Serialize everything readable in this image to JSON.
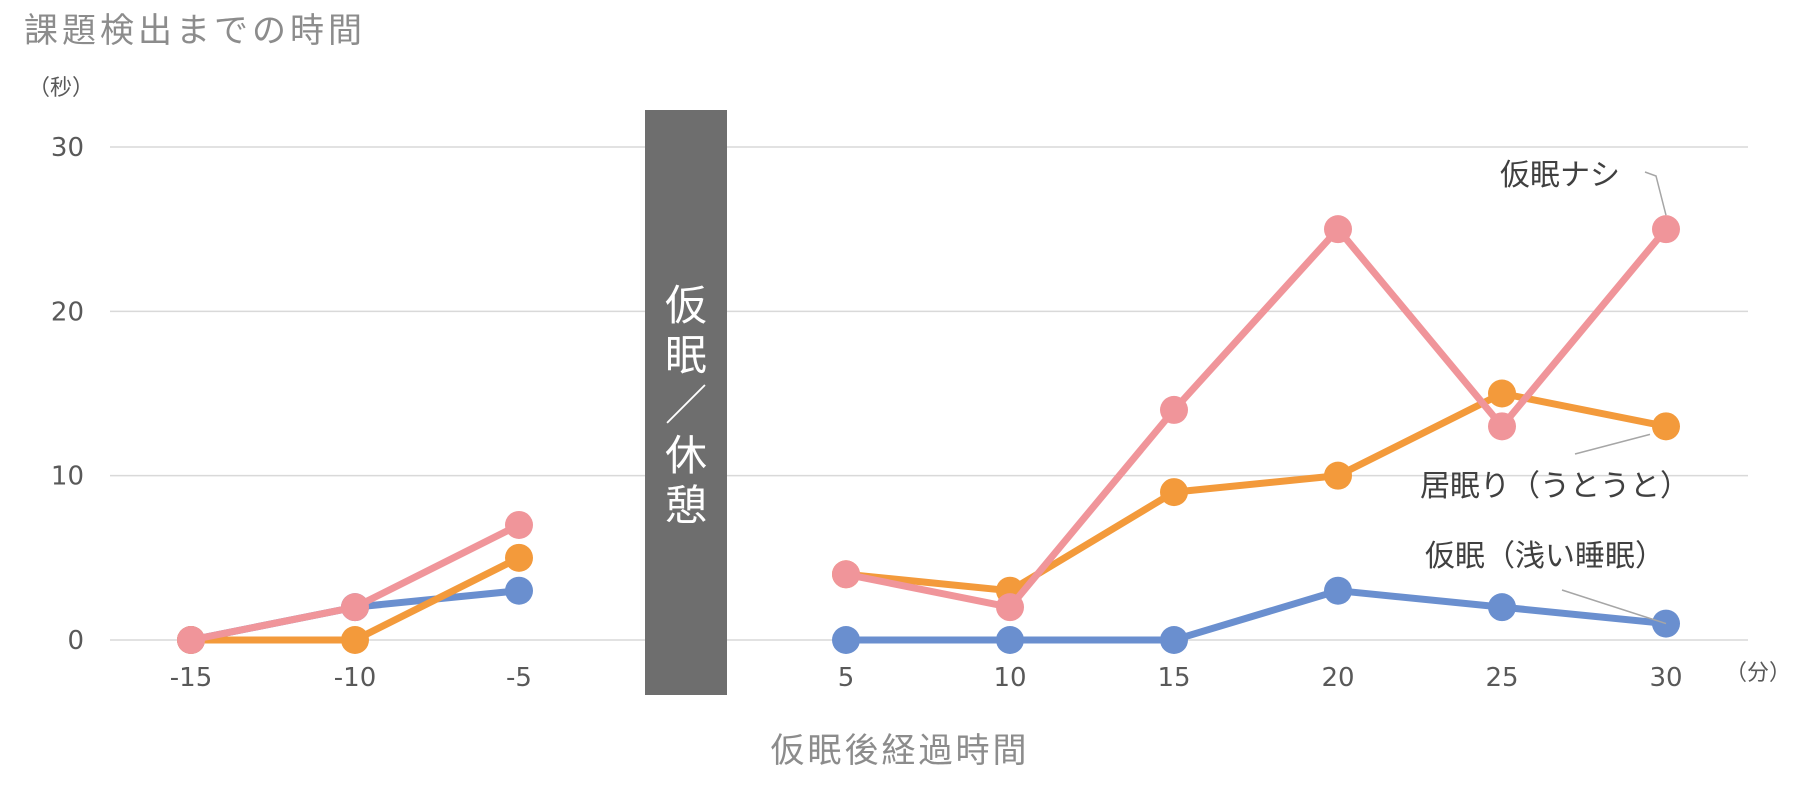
{
  "chart_data": {
    "type": "line",
    "title": "課題検出までの時間",
    "y_unit": "（秒）",
    "x_unit": "（分）",
    "xlabel": "仮眠後経過時間",
    "x": [
      -15,
      -10,
      -5,
      5,
      10,
      15,
      20,
      25,
      30
    ],
    "y_ticks": [
      "0",
      "10",
      "20",
      "30"
    ],
    "ylim": [
      0,
      30
    ],
    "grid": true,
    "break_label": "仮眠／休憩",
    "series": [
      {
        "name": "仮眠ナシ",
        "color": "#f0959a",
        "values": [
          0,
          2,
          7,
          4,
          2,
          14,
          25,
          13,
          25
        ]
      },
      {
        "name": "居眠り（うとうと）",
        "color": "#f39a3b",
        "values": [
          0,
          0,
          5,
          4,
          3,
          9,
          10,
          15,
          13
        ]
      },
      {
        "name": "仮眠（浅い睡眠）",
        "color": "#6a8fcf",
        "values": [
          0,
          2,
          3,
          0,
          0,
          0,
          3,
          2,
          1
        ]
      }
    ]
  }
}
